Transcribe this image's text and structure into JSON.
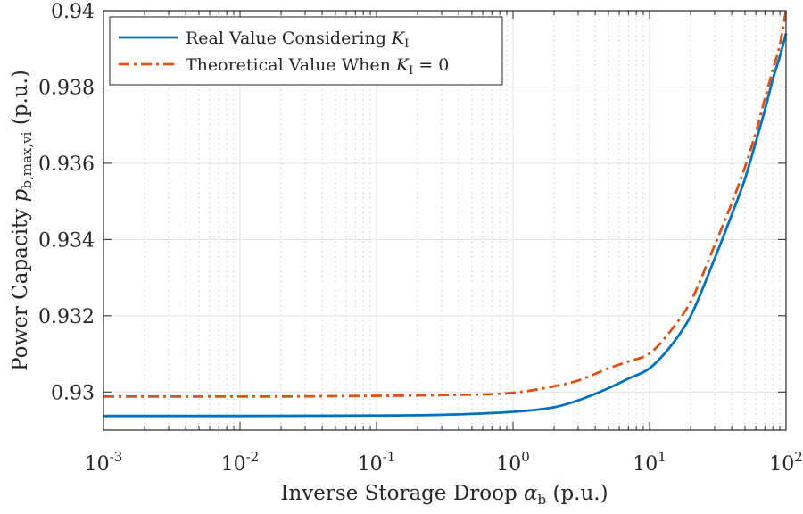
{
  "chart_data": {
    "type": "line",
    "xscale": "log",
    "xlim": [
      0.001,
      100
    ],
    "ylim": [
      0.929,
      0.94
    ],
    "grid": true,
    "minor_grid_x": true,
    "legend_placement": "top-left",
    "xlabel": {
      "text": "Inverse Storage Droop ",
      "sym": "α",
      "sub": "b",
      "unit": " (p.u.)"
    },
    "ylabel": {
      "text": "Power Capacity ",
      "sym": "p",
      "sub": "b,max,vi",
      "unit": " (p.u.)"
    },
    "xticks": [
      {
        "value": 0.001,
        "base": "10",
        "exp": "-3"
      },
      {
        "value": 0.01,
        "base": "10",
        "exp": "-2"
      },
      {
        "value": 0.1,
        "base": "10",
        "exp": "-1"
      },
      {
        "value": 1,
        "base": "10",
        "exp": "0"
      },
      {
        "value": 10,
        "base": "10",
        "exp": "1"
      },
      {
        "value": 100,
        "base": "10",
        "exp": "2"
      }
    ],
    "yticks": [
      {
        "value": 0.93,
        "label": "0.93"
      },
      {
        "value": 0.932,
        "label": "0.932"
      },
      {
        "value": 0.934,
        "label": "0.934"
      },
      {
        "value": 0.936,
        "label": "0.936"
      },
      {
        "value": 0.938,
        "label": "0.938"
      },
      {
        "value": 0.94,
        "label": "0.94"
      }
    ],
    "series": [
      {
        "name": "Real Value Considering K_I",
        "legend": {
          "text": "Real Value Considering ",
          "sym": "K",
          "sub": "I",
          "tail": ""
        },
        "color": "#0072BD",
        "style": "solid",
        "x": [
          0.001,
          0.01,
          0.1,
          0.3,
          1,
          2,
          3,
          5,
          7,
          10,
          15,
          20,
          30,
          40,
          50,
          60,
          70,
          80,
          90,
          100
        ],
        "y": [
          0.92937,
          0.92937,
          0.92938,
          0.9294,
          0.92948,
          0.9296,
          0.92978,
          0.9301,
          0.93035,
          0.93062,
          0.9313,
          0.93199,
          0.9335,
          0.93465,
          0.93559,
          0.93655,
          0.9374,
          0.9382,
          0.9388,
          0.9394
        ]
      },
      {
        "name": "Theoretical Value When K_I = 0",
        "legend": {
          "text": "Theoretical Value When ",
          "sym": "K",
          "sub": "I",
          "tail": " = 0"
        },
        "color": "#D95319",
        "style": "dashdot",
        "x": [
          0.001,
          0.01,
          0.1,
          0.3,
          1,
          2,
          3,
          5,
          7,
          10,
          15,
          20,
          30,
          40,
          50,
          60,
          70,
          80,
          90,
          100
        ],
        "y": [
          0.92988,
          0.92988,
          0.9299,
          0.92992,
          0.92998,
          0.93015,
          0.9303,
          0.93062,
          0.9308,
          0.93101,
          0.9317,
          0.93237,
          0.93385,
          0.93495,
          0.9359,
          0.9368,
          0.9377,
          0.93845,
          0.9391,
          0.94
        ]
      }
    ]
  }
}
